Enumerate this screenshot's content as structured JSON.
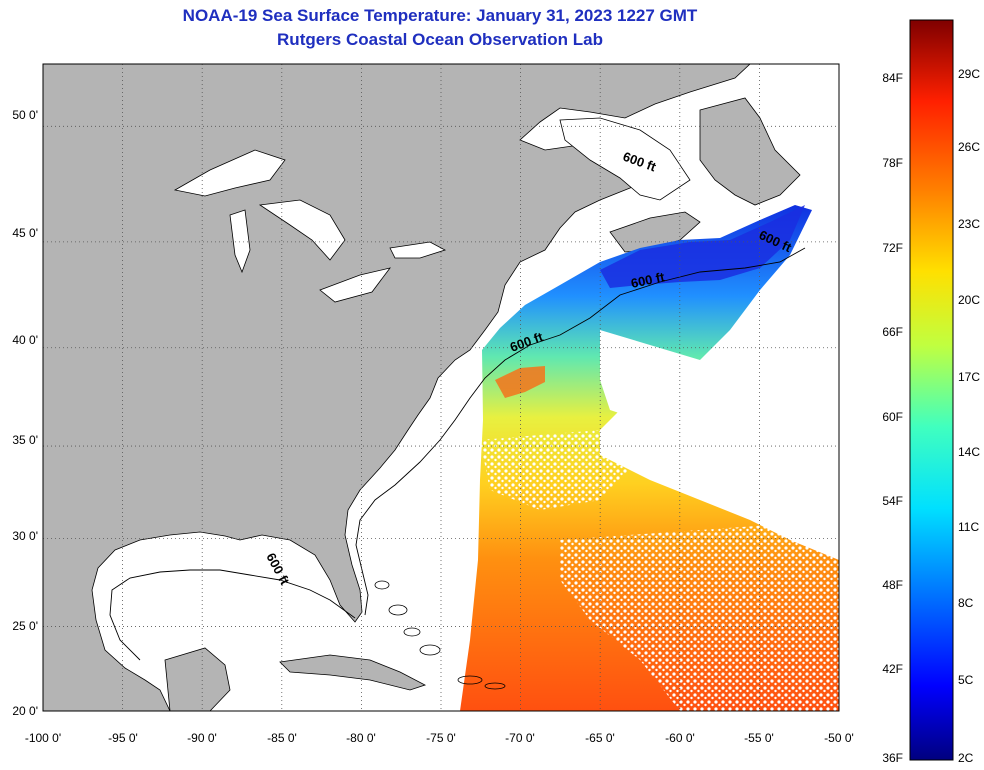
{
  "title": {
    "line1": "NOAA-19 Sea Surface Temperature:  January 31, 2023 1227 GMT",
    "line2": "Rutgers Coastal Ocean Observation Lab"
  },
  "axes": {
    "lat_ticks": [
      "50 0'",
      "45 0'",
      "40 0'",
      "35 0'",
      "30 0'",
      "25 0'",
      "20 0'"
    ],
    "lat_values": [
      50,
      45,
      40,
      35,
      30,
      25,
      20
    ],
    "lon_ticks": [
      "-100 0'",
      "-95 0'",
      "-90 0'",
      "-85 0'",
      "-80 0'",
      "-75 0'",
      "-70 0'",
      "-65 0'",
      "-60 0'",
      "-55 0'",
      "-50 0'"
    ],
    "lon_values": [
      -100,
      -95,
      -90,
      -85,
      -80,
      -75,
      -70,
      -65,
      -60,
      -55,
      -50
    ],
    "lon_range": [
      -100,
      -50
    ],
    "lat_range": [
      20,
      52.5
    ],
    "grid": "dotted"
  },
  "contours": [
    {
      "label": "600 ft"
    },
    {
      "label": "600 ft"
    },
    {
      "label": "600 ft"
    },
    {
      "label": "600 ft"
    },
    {
      "label": "600 ft"
    }
  ],
  "colorbar": {
    "fahrenheit": [
      "84F",
      "78F",
      "72F",
      "66F",
      "60F",
      "54F",
      "48F",
      "42F",
      "36F"
    ],
    "fahrenheit_values": [
      84,
      78,
      72,
      66,
      60,
      54,
      48,
      42,
      36
    ],
    "celsius": [
      "29C",
      "26C",
      "23C",
      "20C",
      "17C",
      "14C",
      "11C",
      "8C",
      "5C",
      "2C"
    ],
    "celsius_values": [
      29,
      26,
      23,
      20,
      17,
      14,
      11,
      8,
      5,
      2
    ],
    "range_c": [
      2,
      31
    ],
    "colors": [
      "#00007f",
      "#0000ff",
      "#0070ff",
      "#00e0ff",
      "#40ffbf",
      "#c0ff40",
      "#ffe000",
      "#ff8000",
      "#ff2000",
      "#7f0000"
    ]
  },
  "colors": {
    "land": "#b4b4b4",
    "ocean": "#ffffff",
    "title": "#1f2fbf"
  }
}
